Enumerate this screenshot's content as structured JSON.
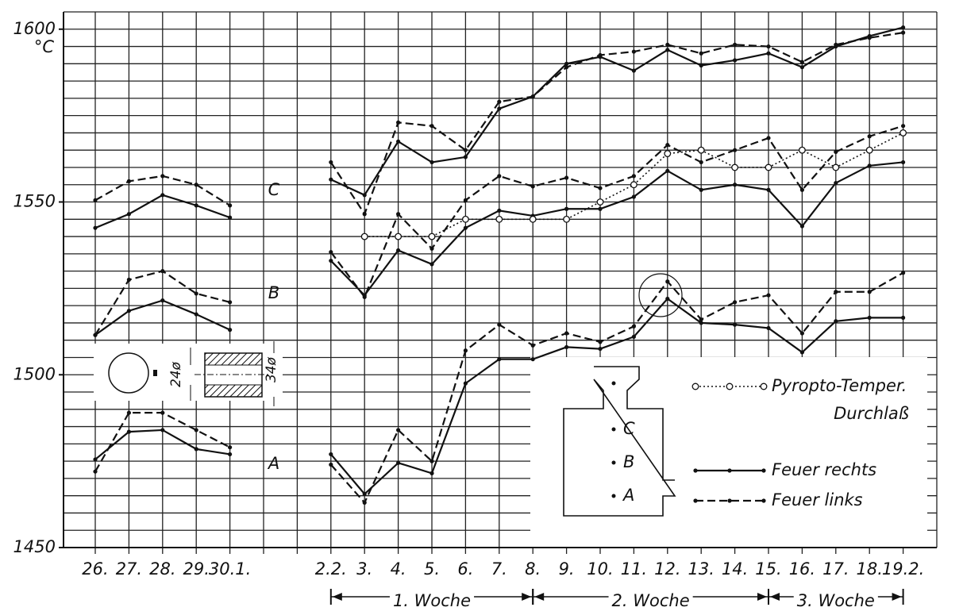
{
  "chart_data": {
    "type": "line",
    "ylabel": "°C",
    "categories": [
      "26.",
      "27.",
      "28.",
      "29.",
      "30.1.",
      null,
      null,
      "2.2.",
      "3.",
      "4.",
      "5.",
      "6.",
      "7.",
      "8.",
      "9.",
      "10.",
      "11.",
      "12.",
      "13.",
      "14.",
      "15.",
      "16.",
      "17.",
      "18.",
      "19.2."
    ],
    "ylim": [
      1450,
      1605
    ],
    "yticks": [
      1450,
      1500,
      1550,
      1600
    ],
    "ygrid": [
      1450,
      1455,
      1460,
      1465,
      1470,
      1475,
      1480,
      1485,
      1490,
      1495,
      1500,
      1505,
      1510,
      1515,
      1520,
      1525,
      1530,
      1535,
      1540,
      1545,
      1550,
      1555,
      1560,
      1565,
      1570,
      1575,
      1580,
      1585,
      1590,
      1595,
      1600,
      1605
    ],
    "grid": true,
    "color": "#111111",
    "position_labels": [
      "C",
      "B",
      "A"
    ],
    "series": [
      {
        "style": "solid",
        "values": [
          1542.5,
          1546.5,
          1552,
          1549,
          1545.5,
          null,
          null,
          1556.5,
          1552,
          1567.5,
          1561.5,
          1563,
          1577,
          1580.5,
          1590,
          1592,
          1588,
          1594,
          1589.5,
          1591,
          1593,
          1589,
          1595,
          1598,
          1600.5
        ]
      },
      {
        "style": "dashed",
        "values": [
          1550.5,
          1556,
          1557.5,
          1555,
          1549,
          null,
          null,
          1561.5,
          1546.5,
          1573,
          1572,
          1565,
          1579,
          1580.5,
          1589,
          1592.5,
          1593.5,
          1595.5,
          1593,
          1595.5,
          1595,
          1590.5,
          1595.5,
          1597.5,
          1599
        ]
      },
      {
        "style": "solid",
        "values": [
          1511.5,
          1518.5,
          1521.5,
          1517.5,
          1513,
          null,
          null,
          1533,
          1523,
          1536,
          1532,
          1542.5,
          1547.5,
          1546,
          1548,
          1548,
          1551.5,
          1559,
          1553.5,
          1555,
          1553.5,
          1543,
          1555.5,
          1560.5,
          1561.5
        ]
      },
      {
        "style": "dashed",
        "values": [
          1511.5,
          1527.5,
          1530,
          1523.5,
          1521,
          null,
          null,
          1535.5,
          1522.5,
          1546.5,
          1536.5,
          1550.5,
          1557.5,
          1554.5,
          1557,
          1554,
          1557.5,
          1566.5,
          1561.5,
          1565,
          1568.5,
          1553.5,
          1564.5,
          1569,
          1572
        ]
      },
      {
        "style": "solid",
        "values": [
          1475.5,
          1483.5,
          1484,
          1478.5,
          1477,
          null,
          null,
          1477,
          1465.5,
          1474.5,
          1471.5,
          1497.5,
          1504.5,
          1504.5,
          1508,
          1507.5,
          1511,
          1522,
          1515,
          1514.5,
          1513.5,
          1506.5,
          1515.5,
          1516.5,
          1516.5
        ]
      },
      {
        "style": "dashed",
        "values": [
          1472,
          1489,
          1489,
          1484,
          1479,
          null,
          null,
          1474,
          1463,
          1484,
          1475,
          1507,
          1514.5,
          1508.5,
          1512,
          1509.5,
          1514,
          1527,
          1516,
          1521,
          1523,
          1512,
          1524,
          1524,
          1529.5
        ]
      },
      {
        "style": "dotted",
        "values": [
          null,
          null,
          null,
          null,
          null,
          null,
          null,
          null,
          1540,
          1540,
          1540,
          1545,
          1545,
          1545,
          1545,
          1550,
          1555,
          1564,
          1565,
          1560,
          1560,
          1565,
          1560,
          1565,
          1570
        ]
      }
    ],
    "legend": [
      {
        "style": "dotted",
        "lines": [
          "Pyropto-Temper.",
          "Durchlaß"
        ]
      },
      {
        "style": "solid",
        "lines": [
          "Feuer rechts"
        ]
      },
      {
        "style": "dashed",
        "lines": [
          "Feuer links"
        ]
      }
    ],
    "weeks": [
      "1. Woche",
      "2. Woche",
      "3. Woche"
    ],
    "inset": {
      "bore_dims": [
        "24ø",
        "34ø"
      ],
      "measure_points": [
        "C",
        "B",
        "A"
      ]
    }
  }
}
